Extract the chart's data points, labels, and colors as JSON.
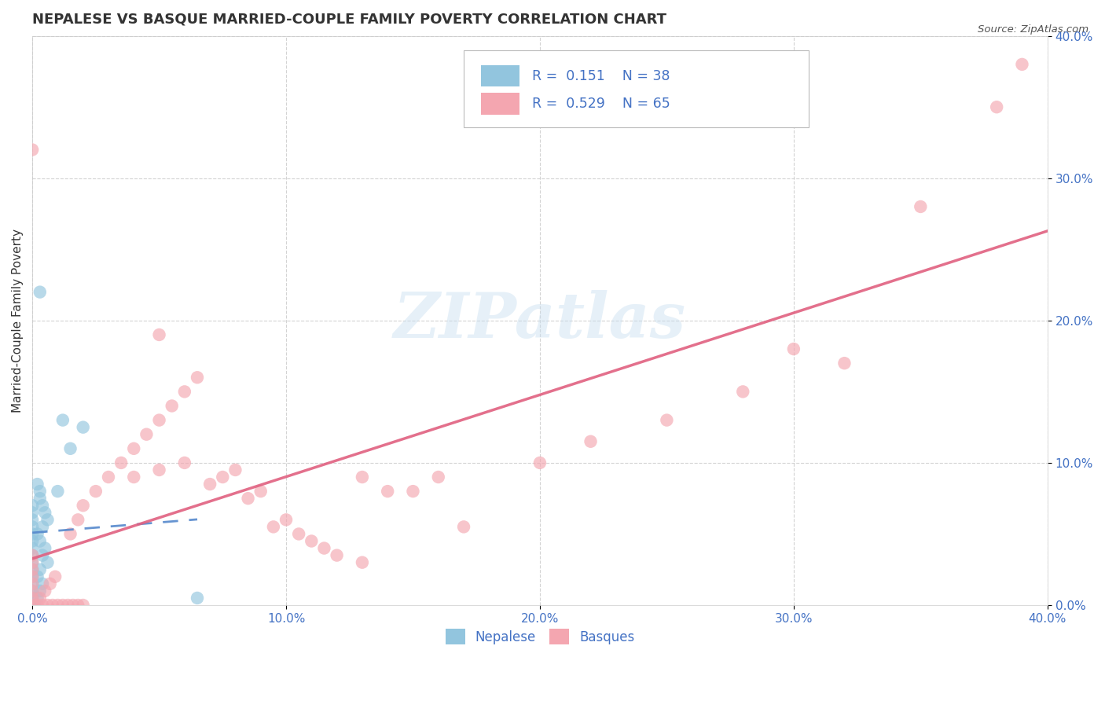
{
  "title": "NEPALESE VS BASQUE MARRIED-COUPLE FAMILY POVERTY CORRELATION CHART",
  "source": "Source: ZipAtlas.com",
  "ylabel": "Married-Couple Family Poverty",
  "xlim": [
    0.0,
    0.4
  ],
  "ylim": [
    0.0,
    0.4
  ],
  "xticks": [
    0.0,
    0.1,
    0.2,
    0.3,
    0.4
  ],
  "yticks": [
    0.0,
    0.1,
    0.2,
    0.3,
    0.4
  ],
  "xticklabels": [
    "0.0%",
    "10.0%",
    "20.0%",
    "30.0%",
    "40.0%"
  ],
  "yticklabels": [
    "0.0%",
    "10.0%",
    "20.0%",
    "30.0%",
    "40.0%"
  ],
  "nepalese_color": "#92C5DE",
  "basque_color": "#F4A6B0",
  "nepalese_R": 0.151,
  "nepalese_N": 38,
  "basque_R": 0.529,
  "basque_N": 65,
  "legend_label_nepalese": "Nepalese",
  "legend_label_basque": "Basques",
  "watermark": "ZIPatlas",
  "background_color": "#ffffff",
  "grid_color": "#c8c8c8",
  "title_color": "#333333",
  "tick_color": "#4472c4",
  "nepalese_line_color": "#5588cc",
  "basque_line_color": "#E06080",
  "nepalese_points": [
    [
      0.002,
      0.085
    ],
    [
      0.003,
      0.075
    ],
    [
      0.004,
      0.07
    ],
    [
      0.005,
      0.065
    ],
    [
      0.003,
      0.08
    ],
    [
      0.006,
      0.06
    ],
    [
      0.004,
      0.055
    ],
    [
      0.002,
      0.05
    ],
    [
      0.003,
      0.045
    ],
    [
      0.005,
      0.04
    ],
    [
      0.004,
      0.035
    ],
    [
      0.006,
      0.03
    ],
    [
      0.003,
      0.025
    ],
    [
      0.002,
      0.02
    ],
    [
      0.004,
      0.015
    ],
    [
      0.003,
      0.01
    ],
    [
      0.002,
      0.005
    ],
    [
      0.001,
      0.0
    ],
    [
      0.0,
      0.005
    ],
    [
      0.0,
      0.01
    ],
    [
      0.0,
      0.015
    ],
    [
      0.0,
      0.02
    ],
    [
      0.0,
      0.025
    ],
    [
      0.0,
      0.03
    ],
    [
      0.0,
      0.035
    ],
    [
      0.0,
      0.04
    ],
    [
      0.0,
      0.045
    ],
    [
      0.0,
      0.05
    ],
    [
      0.0,
      0.055
    ],
    [
      0.0,
      0.06
    ],
    [
      0.0,
      0.065
    ],
    [
      0.0,
      0.07
    ],
    [
      0.01,
      0.08
    ],
    [
      0.015,
      0.11
    ],
    [
      0.012,
      0.13
    ],
    [
      0.02,
      0.125
    ],
    [
      0.065,
      0.005
    ],
    [
      0.003,
      0.22
    ]
  ],
  "basque_points": [
    [
      0.0,
      0.0
    ],
    [
      0.0,
      0.005
    ],
    [
      0.0,
      0.01
    ],
    [
      0.0,
      0.015
    ],
    [
      0.0,
      0.02
    ],
    [
      0.0,
      0.025
    ],
    [
      0.0,
      0.03
    ],
    [
      0.0,
      0.035
    ],
    [
      0.002,
      0.0
    ],
    [
      0.004,
      0.0
    ],
    [
      0.006,
      0.0
    ],
    [
      0.008,
      0.0
    ],
    [
      0.01,
      0.0
    ],
    [
      0.012,
      0.0
    ],
    [
      0.014,
      0.0
    ],
    [
      0.016,
      0.0
    ],
    [
      0.018,
      0.0
    ],
    [
      0.02,
      0.0
    ],
    [
      0.003,
      0.005
    ],
    [
      0.005,
      0.01
    ],
    [
      0.007,
      0.015
    ],
    [
      0.009,
      0.02
    ],
    [
      0.015,
      0.05
    ],
    [
      0.018,
      0.06
    ],
    [
      0.02,
      0.07
    ],
    [
      0.025,
      0.08
    ],
    [
      0.03,
      0.09
    ],
    [
      0.035,
      0.1
    ],
    [
      0.04,
      0.11
    ],
    [
      0.045,
      0.12
    ],
    [
      0.05,
      0.13
    ],
    [
      0.055,
      0.14
    ],
    [
      0.06,
      0.15
    ],
    [
      0.065,
      0.16
    ],
    [
      0.07,
      0.085
    ],
    [
      0.075,
      0.09
    ],
    [
      0.08,
      0.095
    ],
    [
      0.085,
      0.075
    ],
    [
      0.09,
      0.08
    ],
    [
      0.095,
      0.055
    ],
    [
      0.1,
      0.06
    ],
    [
      0.105,
      0.05
    ],
    [
      0.11,
      0.045
    ],
    [
      0.115,
      0.04
    ],
    [
      0.12,
      0.035
    ],
    [
      0.13,
      0.03
    ],
    [
      0.04,
      0.09
    ],
    [
      0.05,
      0.095
    ],
    [
      0.06,
      0.1
    ],
    [
      0.15,
      0.08
    ],
    [
      0.16,
      0.09
    ],
    [
      0.17,
      0.055
    ],
    [
      0.13,
      0.09
    ],
    [
      0.14,
      0.08
    ],
    [
      0.2,
      0.1
    ],
    [
      0.22,
      0.115
    ],
    [
      0.25,
      0.13
    ],
    [
      0.28,
      0.15
    ],
    [
      0.3,
      0.18
    ],
    [
      0.0,
      0.32
    ],
    [
      0.05,
      0.19
    ],
    [
      0.35,
      0.28
    ],
    [
      0.38,
      0.35
    ],
    [
      0.39,
      0.38
    ],
    [
      0.32,
      0.17
    ]
  ]
}
